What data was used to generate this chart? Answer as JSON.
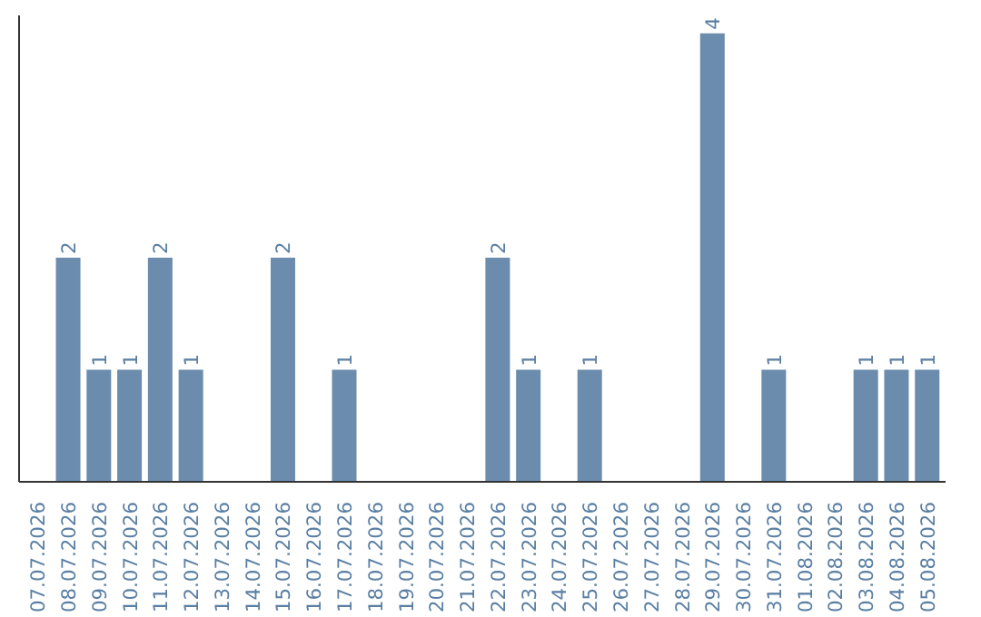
{
  "chart_data": {
    "type": "bar",
    "categories": [
      "07.07.2026",
      "08.07.2026",
      "09.07.2026",
      "10.07.2026",
      "11.07.2026",
      "12.07.2026",
      "13.07.2026",
      "14.07.2026",
      "15.07.2026",
      "16.07.2026",
      "17.07.2026",
      "18.07.2026",
      "19.07.2026",
      "20.07.2026",
      "21.07.2026",
      "22.07.2026",
      "23.07.2026",
      "24.07.2026",
      "25.07.2026",
      "26.07.2026",
      "27.07.2026",
      "28.07.2026",
      "29.07.2026",
      "30.07.2026",
      "31.07.2026",
      "01.08.2026",
      "02.08.2026",
      "03.08.2026",
      "04.08.2026",
      "05.08.2026"
    ],
    "values": [
      0,
      2,
      1,
      1,
      2,
      1,
      0,
      0,
      2,
      0,
      1,
      0,
      0,
      0,
      0,
      2,
      1,
      0,
      1,
      0,
      0,
      0,
      4,
      0,
      1,
      0,
      0,
      1,
      1,
      1
    ],
    "value_labels": [
      null,
      "2",
      "1",
      "1",
      "2",
      "1",
      null,
      null,
      "2",
      null,
      "1",
      null,
      null,
      null,
      null,
      "2",
      "1",
      null,
      "1",
      null,
      null,
      null,
      "4",
      null,
      "1",
      null,
      null,
      "1",
      "1",
      "1"
    ],
    "color": "#6b8cad",
    "grid": false,
    "tick_labels": "x"
  }
}
